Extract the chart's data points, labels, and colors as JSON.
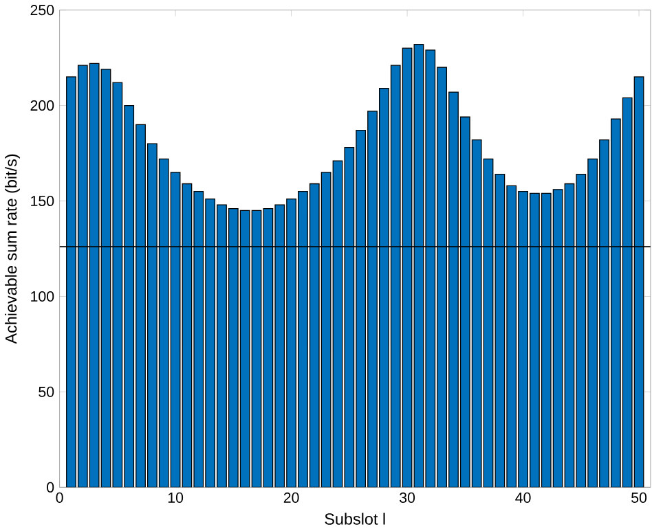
{
  "chart_data": {
    "type": "bar",
    "xlabel": "Subslot l",
    "ylabel": "Achievable sum rate (bit/s)",
    "x": [
      1,
      2,
      3,
      4,
      5,
      6,
      7,
      8,
      9,
      10,
      11,
      12,
      13,
      14,
      15,
      16,
      17,
      18,
      19,
      20,
      21,
      22,
      23,
      24,
      25,
      26,
      27,
      28,
      29,
      30,
      31,
      32,
      33,
      34,
      35,
      36,
      37,
      38,
      39,
      40,
      41,
      42,
      43,
      44,
      45,
      46,
      47,
      48,
      49,
      50
    ],
    "values": [
      215,
      221,
      222,
      219,
      212,
      200,
      190,
      180,
      172,
      165,
      159,
      155,
      151,
      148,
      146,
      145,
      145,
      146,
      148,
      151,
      155,
      159,
      165,
      171,
      178,
      187,
      197,
      209,
      221,
      230,
      232,
      229,
      220,
      207,
      194,
      182,
      172,
      164,
      158,
      155,
      154,
      154,
      156,
      159,
      164,
      172,
      182,
      193,
      204,
      215
    ],
    "color": "#0072bd",
    "xlim": [
      0,
      51
    ],
    "xticks": [
      0,
      10,
      20,
      30,
      40,
      50
    ],
    "ylim": [
      0,
      250
    ],
    "yticks": [
      0,
      50,
      100,
      150,
      200,
      250
    ],
    "ref_lines": [
      {
        "axis": "y",
        "value": 126,
        "color": "#000000"
      }
    ]
  }
}
